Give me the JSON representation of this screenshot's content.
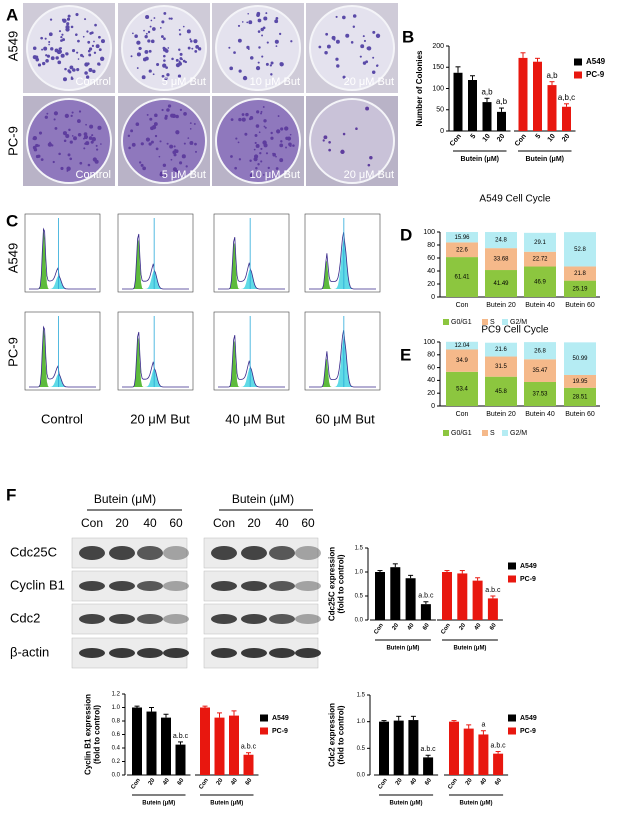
{
  "panel_labels": [
    "A",
    "B",
    "C",
    "D",
    "E",
    "F"
  ],
  "panel_a": {
    "rows": [
      "A549",
      "PC-9"
    ],
    "captions": [
      "Control",
      "5 μM But",
      "10 μM But",
      "20 μM But"
    ]
  },
  "panel_c": {
    "rows": [
      "A549",
      "PC-9"
    ],
    "captions": [
      "Control",
      "20 μM But",
      "40 μM But",
      "60 μM But"
    ]
  },
  "panel_f_blot": {
    "group_label": "Butein (μM)",
    "lanes": [
      "Con",
      "20",
      "40",
      "60"
    ],
    "proteins": [
      "Cdc25C",
      "Cyclin B1",
      "Cdc2",
      "β-actin"
    ]
  },
  "chart_data": [
    {
      "type": "bar",
      "ylabel": [
        "Number of Colonies"
      ],
      "xlabel": "Butein (μM)",
      "categories": [
        "Con",
        "5",
        "10",
        "20"
      ],
      "ylim": [
        0,
        200
      ],
      "yticks": [
        0,
        50,
        100,
        150,
        200
      ],
      "legend": "right",
      "series": [
        {
          "name": "A549",
          "color": "#000000",
          "values": [
            137,
            120,
            68,
            45
          ],
          "errors": [
            14,
            10,
            9,
            9
          ],
          "annotations": [
            null,
            null,
            "a,b",
            "a,b"
          ]
        },
        {
          "name": "PC-9",
          "color": "#e8170f",
          "values": [
            172,
            163,
            108,
            57
          ],
          "errors": [
            12,
            8,
            8,
            7
          ],
          "annotations": [
            null,
            null,
            "a,b",
            "a,b,c"
          ]
        }
      ]
    },
    {
      "type": "stacked_bar",
      "title": "A549 Cell Cycle",
      "categories": [
        "Con",
        "Butein 20",
        "Butein 40",
        "Butein 60"
      ],
      "ylim": [
        0,
        100
      ],
      "yticks": [
        0,
        20,
        40,
        60,
        80,
        100
      ],
      "legend": "bottom",
      "series": [
        {
          "name": "G0/G1",
          "color": "#8cc63f",
          "values": [
            61.41,
            41.49,
            46.9,
            25.19
          ]
        },
        {
          "name": "S",
          "color": "#f5b98a",
          "values": [
            22.6,
            33.68,
            22.72,
            21.8
          ]
        },
        {
          "name": "G2/M",
          "color": "#b5ecf3",
          "values": [
            15.96,
            24.8,
            29.1,
            52.8
          ]
        }
      ]
    },
    {
      "type": "stacked_bar",
      "title": "PC9 Cell Cycle",
      "categories": [
        "Con",
        "Butein 20",
        "Butein 40",
        "Butein 60"
      ],
      "ylim": [
        0,
        100
      ],
      "yticks": [
        0,
        20,
        40,
        60,
        80,
        100
      ],
      "legend": "bottom",
      "series": [
        {
          "name": "G0/G1",
          "color": "#8cc63f",
          "values": [
            53.4,
            45.8,
            37.53,
            28.51
          ]
        },
        {
          "name": "S",
          "color": "#f5b98a",
          "values": [
            34.9,
            31.5,
            35.47,
            19.95
          ]
        },
        {
          "name": "G2/M",
          "color": "#b5ecf3",
          "values": [
            12.04,
            21.6,
            26.8,
            50.99
          ]
        }
      ]
    },
    {
      "type": "bar",
      "ylabel": [
        "Cdc25C expression",
        "(fold to control)"
      ],
      "xlabel": "Butein (μM)",
      "categories": [
        "Con",
        "20",
        "40",
        "60"
      ],
      "ylim": [
        0,
        1.5
      ],
      "yticks": [
        {
          "value": 0,
          "label": "0.0"
        },
        0.5,
        {
          "value": 1,
          "label": "1.0"
        },
        1.5
      ],
      "legend": "right",
      "series": [
        {
          "name": "A549",
          "color": "#000000",
          "values": [
            1.0,
            1.1,
            0.87,
            0.33
          ],
          "errors": [
            0.03,
            0.07,
            0.06,
            0.05
          ],
          "annotations": [
            null,
            null,
            null,
            "a.b.c"
          ]
        },
        {
          "name": "PC-9",
          "color": "#e8170f",
          "values": [
            1.0,
            0.97,
            0.82,
            0.45
          ],
          "errors": [
            0.03,
            0.06,
            0.06,
            0.05
          ],
          "annotations": [
            null,
            null,
            null,
            "a.b.c"
          ]
        }
      ]
    },
    {
      "type": "bar",
      "ylabel": [
        "Cyclin B1 expression",
        "(fold to control)"
      ],
      "xlabel": "Butein (μM)",
      "categories": [
        "Con",
        "20",
        "40",
        "60"
      ],
      "ylim": [
        0,
        1.2
      ],
      "yticks": [
        {
          "value": 0,
          "label": "0.0"
        },
        0.2,
        0.4,
        0.6,
        0.8,
        {
          "value": 1,
          "label": "1.0"
        },
        1.2
      ],
      "legend": "right",
      "series": [
        {
          "name": "A549",
          "color": "#000000",
          "values": [
            1.0,
            0.94,
            0.85,
            0.45
          ],
          "errors": [
            0.02,
            0.06,
            0.05,
            0.04
          ],
          "annotations": [
            null,
            null,
            null,
            "a.b.c"
          ]
        },
        {
          "name": "PC-9",
          "color": "#e8170f",
          "values": [
            1.0,
            0.85,
            0.88,
            0.3
          ],
          "errors": [
            0.02,
            0.07,
            0.07,
            0.03
          ],
          "annotations": [
            null,
            null,
            null,
            "a.b.c"
          ]
        }
      ]
    },
    {
      "type": "bar",
      "ylabel": [
        "Cdc2 expression",
        "(fold to control)"
      ],
      "xlabel": "Butein (μM)",
      "categories": [
        "Con",
        "20",
        "40",
        "60"
      ],
      "ylim": [
        0,
        1.5
      ],
      "yticks": [
        {
          "value": 0,
          "label": "0.0"
        },
        0.5,
        {
          "value": 1,
          "label": "1.0"
        },
        1.5
      ],
      "legend": "right",
      "series": [
        {
          "name": "A549",
          "color": "#000000",
          "values": [
            1.0,
            1.02,
            1.03,
            0.33
          ],
          "errors": [
            0.02,
            0.08,
            0.07,
            0.04
          ],
          "annotations": [
            null,
            null,
            null,
            "a.b.c"
          ]
        },
        {
          "name": "PC-9",
          "color": "#e8170f",
          "values": [
            1.0,
            0.87,
            0.76,
            0.4
          ],
          "errors": [
            0.02,
            0.07,
            0.07,
            0.04
          ],
          "annotations": [
            null,
            null,
            "a",
            "a.b.c"
          ]
        }
      ]
    }
  ]
}
